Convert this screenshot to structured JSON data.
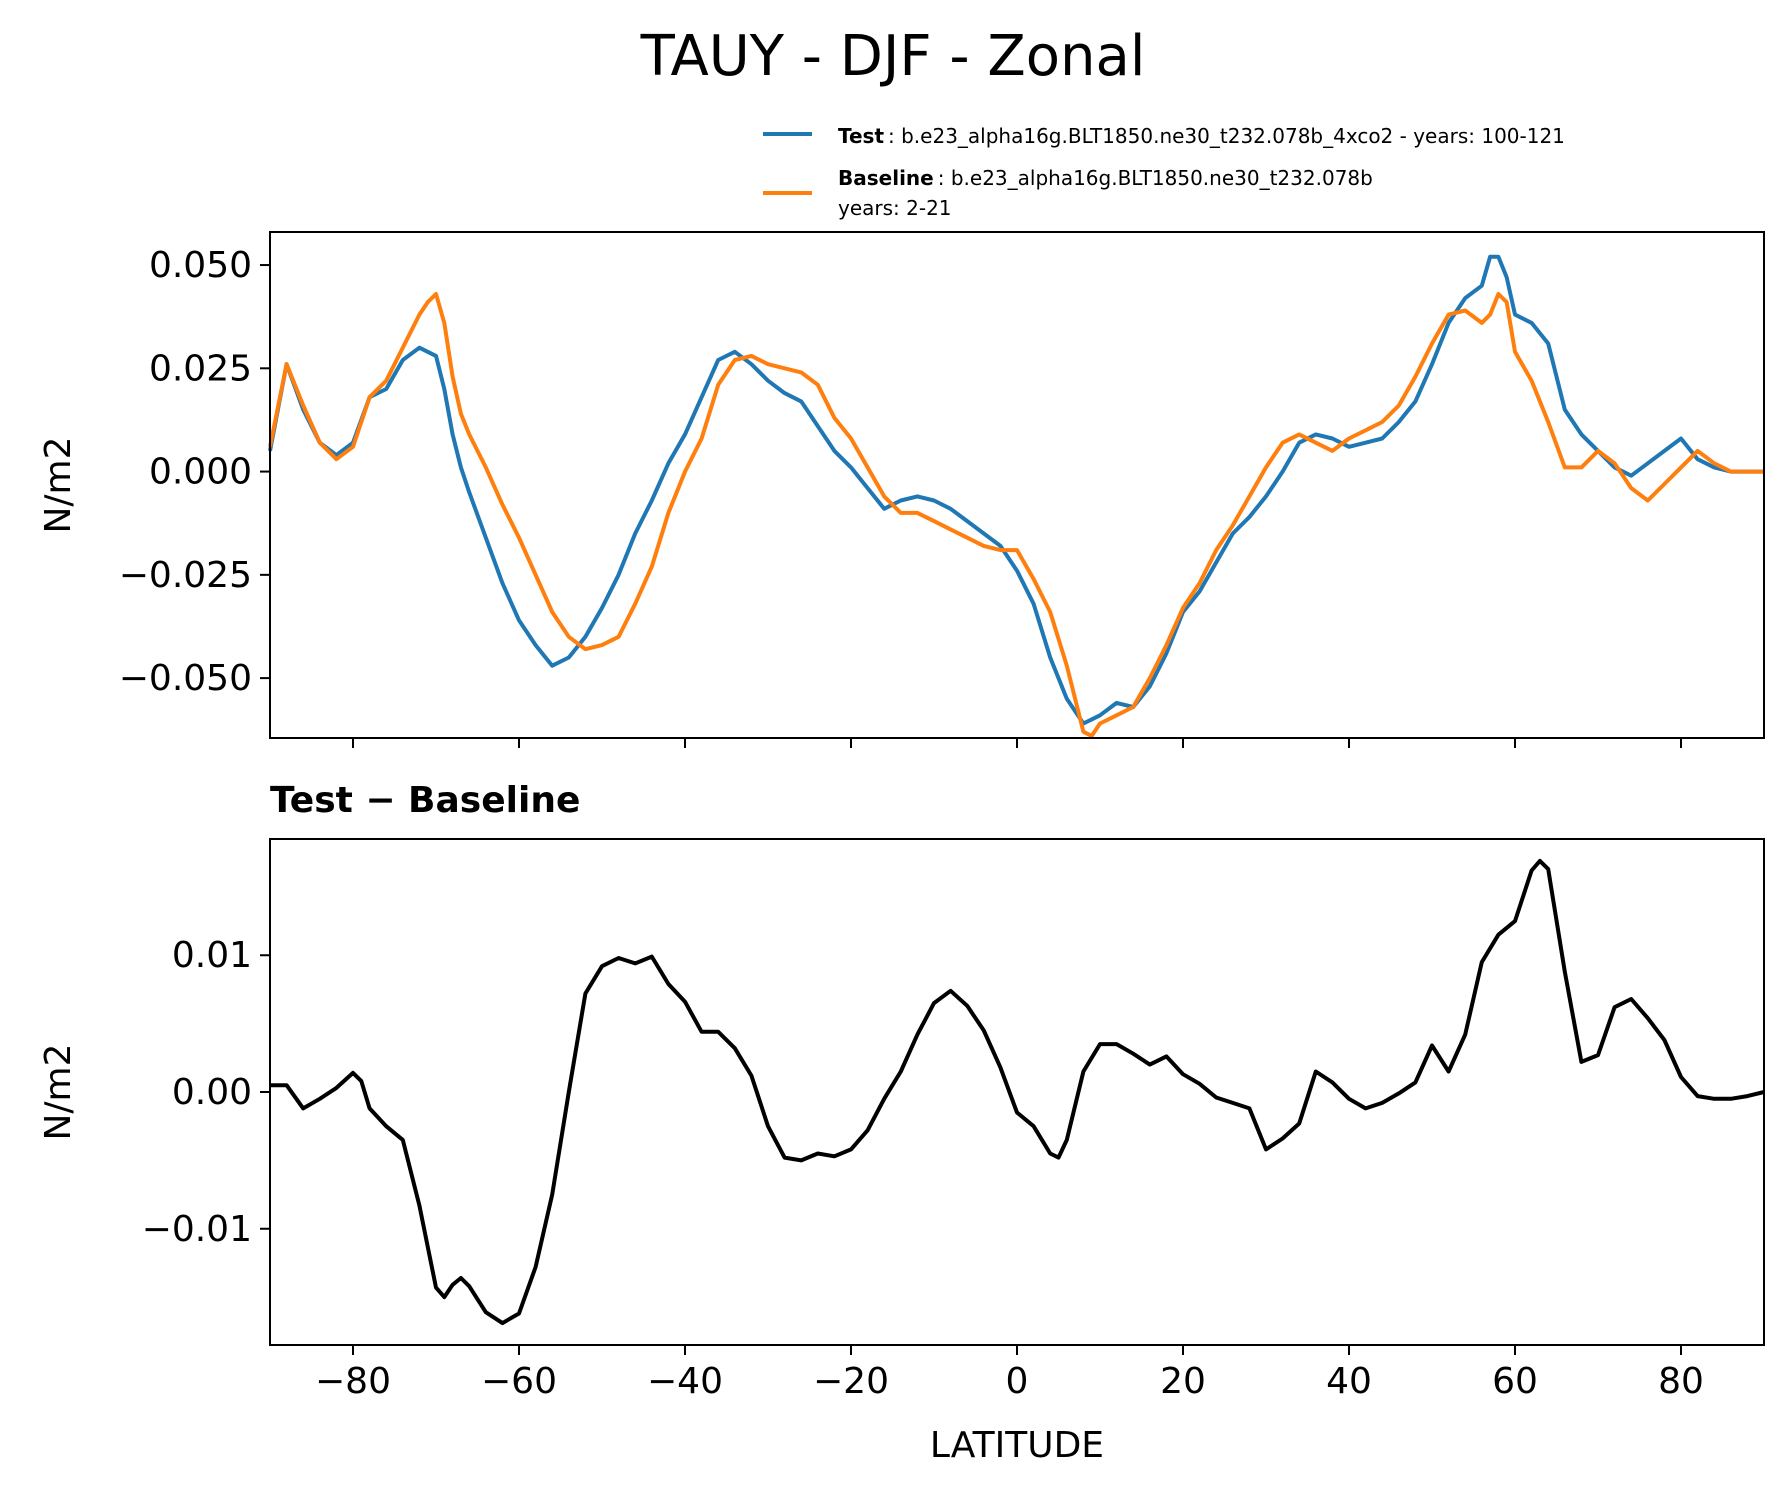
{
  "title": "TAUY - DJF - Zonal",
  "legend": {
    "test_label": "Test",
    "test_desc": ": b.e23_alpha16g.BLT1850.ne30_t232.078b_4xco2 - years: 100-121",
    "baseline_label": "Baseline",
    "baseline_desc": ": b.e23_alpha16g.BLT1850.ne30_t232.078b",
    "baseline_years": "years: 2-21"
  },
  "colors": {
    "test": "#1f77b4",
    "baseline": "#ff7f0e",
    "diff": "#000000"
  },
  "chart_data": [
    {
      "type": "line",
      "title": "TAUY - DJF - Zonal",
      "xlabel": "",
      "ylabel": "N/m2",
      "xlim": [
        -90,
        90
      ],
      "ylim": [
        -0.0645,
        0.058
      ],
      "yticks": [
        0.05,
        0.025,
        0.0,
        -0.025,
        -0.05
      ],
      "ytick_labels": [
        "0.050",
        "0.025",
        "0.000",
        "−0.025",
        "−0.050"
      ],
      "xticks": [
        -80,
        -60,
        -40,
        -20,
        0,
        20,
        40,
        60,
        80
      ],
      "series": [
        {
          "name": "Test",
          "x": [
            -90,
            -88,
            -86,
            -84,
            -82,
            -80,
            -78,
            -76,
            -74,
            -72,
            -70,
            -69,
            -68,
            -67,
            -66,
            -64,
            -62,
            -60,
            -58,
            -56,
            -54,
            -52,
            -50,
            -48,
            -46,
            -44,
            -42,
            -40,
            -38,
            -36,
            -34,
            -32,
            -30,
            -28,
            -26,
            -24,
            -22,
            -20,
            -18,
            -16,
            -14,
            -12,
            -10,
            -8,
            -6,
            -4,
            -2,
            0,
            2,
            4,
            6,
            8,
            9,
            10,
            12,
            14,
            16,
            18,
            20,
            22,
            24,
            26,
            28,
            30,
            32,
            34,
            36,
            38,
            40,
            42,
            44,
            46,
            48,
            50,
            52,
            54,
            56,
            57,
            58,
            59,
            60,
            62,
            64,
            66,
            68,
            70,
            72,
            74,
            76,
            78,
            80,
            82,
            84,
            86,
            88,
            90
          ],
          "y": [
            0.005,
            0.026,
            0.015,
            0.007,
            0.004,
            0.007,
            0.018,
            0.02,
            0.027,
            0.03,
            0.028,
            0.02,
            0.009,
            0.001,
            -0.005,
            -0.016,
            -0.027,
            -0.036,
            -0.042,
            -0.047,
            -0.045,
            -0.04,
            -0.033,
            -0.025,
            -0.015,
            -0.007,
            0.002,
            0.009,
            0.018,
            0.027,
            0.029,
            0.026,
            0.022,
            0.019,
            0.017,
            0.011,
            0.005,
            0.001,
            -0.004,
            -0.009,
            -0.007,
            -0.006,
            -0.007,
            -0.009,
            -0.012,
            -0.015,
            -0.018,
            -0.024,
            -0.032,
            -0.045,
            -0.055,
            -0.061,
            -0.06,
            -0.059,
            -0.056,
            -0.057,
            -0.052,
            -0.044,
            -0.034,
            -0.029,
            -0.022,
            -0.015,
            -0.011,
            -0.006,
            0.0,
            0.007,
            0.009,
            0.008,
            0.006,
            0.007,
            0.008,
            0.012,
            0.017,
            0.026,
            0.036,
            0.042,
            0.045,
            0.052,
            0.052,
            0.047,
            0.038,
            0.036,
            0.031,
            0.015,
            0.009,
            0.005,
            0.001,
            -0.001,
            0.002,
            0.005,
            0.008,
            0.003,
            0.001,
            0.0,
            0.0,
            0.0
          ]
        },
        {
          "name": "Baseline",
          "x": [
            -90,
            -88,
            -86,
            -84,
            -82,
            -80,
            -78,
            -76,
            -74,
            -72,
            -71,
            -70,
            -69,
            -68,
            -67,
            -66,
            -64,
            -62,
            -60,
            -58,
            -56,
            -54,
            -52,
            -50,
            -48,
            -46,
            -44,
            -42,
            -40,
            -38,
            -36,
            -34,
            -32,
            -30,
            -28,
            -26,
            -24,
            -22,
            -20,
            -18,
            -16,
            -14,
            -12,
            -10,
            -8,
            -6,
            -4,
            -2,
            0,
            2,
            4,
            6,
            8,
            9,
            10,
            12,
            14,
            16,
            18,
            20,
            22,
            24,
            26,
            28,
            30,
            32,
            34,
            36,
            38,
            40,
            42,
            44,
            46,
            48,
            50,
            52,
            54,
            56,
            57,
            58,
            59,
            60,
            62,
            64,
            66,
            68,
            70,
            72,
            74,
            76,
            78,
            80,
            82,
            84,
            86,
            88,
            90
          ],
          "y": [
            0.006,
            0.026,
            0.016,
            0.007,
            0.003,
            0.006,
            0.018,
            0.022,
            0.03,
            0.038,
            0.041,
            0.043,
            0.036,
            0.023,
            0.014,
            0.009,
            0.001,
            -0.008,
            -0.016,
            -0.025,
            -0.034,
            -0.04,
            -0.043,
            -0.042,
            -0.04,
            -0.032,
            -0.023,
            -0.01,
            0.0,
            0.008,
            0.021,
            0.027,
            0.028,
            0.026,
            0.025,
            0.024,
            0.021,
            0.013,
            0.008,
            0.001,
            -0.006,
            -0.01,
            -0.01,
            -0.012,
            -0.014,
            -0.016,
            -0.018,
            -0.019,
            -0.019,
            -0.026,
            -0.034,
            -0.047,
            -0.063,
            -0.064,
            -0.061,
            -0.059,
            -0.057,
            -0.05,
            -0.042,
            -0.033,
            -0.027,
            -0.019,
            -0.013,
            -0.006,
            0.001,
            0.007,
            0.009,
            0.007,
            0.005,
            0.008,
            0.01,
            0.012,
            0.016,
            0.023,
            0.031,
            0.038,
            0.039,
            0.036,
            0.038,
            0.043,
            0.041,
            0.029,
            0.022,
            0.012,
            0.001,
            0.001,
            0.005,
            0.002,
            -0.004,
            -0.007,
            -0.003,
            0.001,
            0.005,
            0.002,
            0.0,
            0.0,
            0.0
          ]
        }
      ]
    },
    {
      "type": "line",
      "title": "Test − Baseline",
      "xlabel": "LATITUDE",
      "ylabel": "N/m2",
      "xlim": [
        -90,
        90
      ],
      "ylim": [
        -0.0185,
        0.0185
      ],
      "yticks": [
        0.01,
        0.0,
        -0.01
      ],
      "ytick_labels": [
        "0.01",
        "0.00",
        "−0.01"
      ],
      "xticks": [
        -80,
        -60,
        -40,
        -20,
        0,
        20,
        40,
        60,
        80
      ],
      "xtick_labels": [
        "−80",
        "−60",
        "−40",
        "−20",
        "0",
        "20",
        "40",
        "60",
        "80"
      ],
      "series": [
        {
          "name": "Test − Baseline",
          "x": [
            -90,
            -88,
            -86,
            -84,
            -82,
            -80,
            -79,
            -78,
            -76,
            -74,
            -72,
            -70,
            -69,
            -68,
            -67,
            -66,
            -64,
            -62,
            -60,
            -58,
            -56,
            -54,
            -52,
            -50,
            -48,
            -46,
            -44,
            -42,
            -40,
            -38,
            -36,
            -34,
            -32,
            -30,
            -28,
            -26,
            -24,
            -22,
            -20,
            -18,
            -16,
            -14,
            -12,
            -10,
            -8,
            -6,
            -4,
            -2,
            0,
            2,
            4,
            5,
            6,
            8,
            10,
            12,
            14,
            16,
            18,
            20,
            22,
            24,
            26,
            28,
            30,
            32,
            34,
            36,
            38,
            40,
            42,
            44,
            46,
            48,
            50,
            52,
            54,
            56,
            58,
            60,
            62,
            63,
            64,
            66,
            68,
            70,
            72,
            74,
            76,
            78,
            80,
            82,
            84,
            86,
            88,
            90
          ],
          "y": [
            0.0005,
            0.0005,
            -0.0012,
            -0.0005,
            0.0003,
            0.0014,
            0.0008,
            -0.0012,
            -0.0025,
            -0.0035,
            -0.0083,
            -0.0143,
            -0.015,
            -0.0141,
            -0.0136,
            -0.0142,
            -0.0161,
            -0.0169,
            -0.0162,
            -0.0128,
            -0.0075,
            0.0,
            0.0072,
            0.0092,
            0.0098,
            0.0094,
            0.0099,
            0.0079,
            0.0066,
            0.0044,
            0.0044,
            0.0032,
            0.0012,
            -0.0025,
            -0.0048,
            -0.005,
            -0.0045,
            -0.0047,
            -0.0042,
            -0.0028,
            -0.0005,
            0.0015,
            0.0042,
            0.0065,
            0.0074,
            0.0063,
            0.0045,
            0.0018,
            -0.0015,
            -0.0025,
            -0.0045,
            -0.0048,
            -0.0035,
            0.0015,
            0.0035,
            0.0035,
            0.0028,
            0.002,
            0.0026,
            0.0013,
            0.0006,
            -0.0004,
            -0.0008,
            -0.0012,
            -0.0042,
            -0.0034,
            -0.0023,
            0.0015,
            0.0007,
            -0.0005,
            -0.0012,
            -0.0008,
            -0.0001,
            0.0007,
            0.0034,
            0.0015,
            0.0042,
            0.0095,
            0.0115,
            0.0125,
            0.0162,
            0.0169,
            0.0163,
            0.0088,
            0.0022,
            0.0027,
            0.0062,
            0.0068,
            0.0054,
            0.0038,
            0.0011,
            -0.0003,
            -0.0005,
            -0.0005,
            -0.0003,
            0.0
          ]
        }
      ]
    }
  ]
}
